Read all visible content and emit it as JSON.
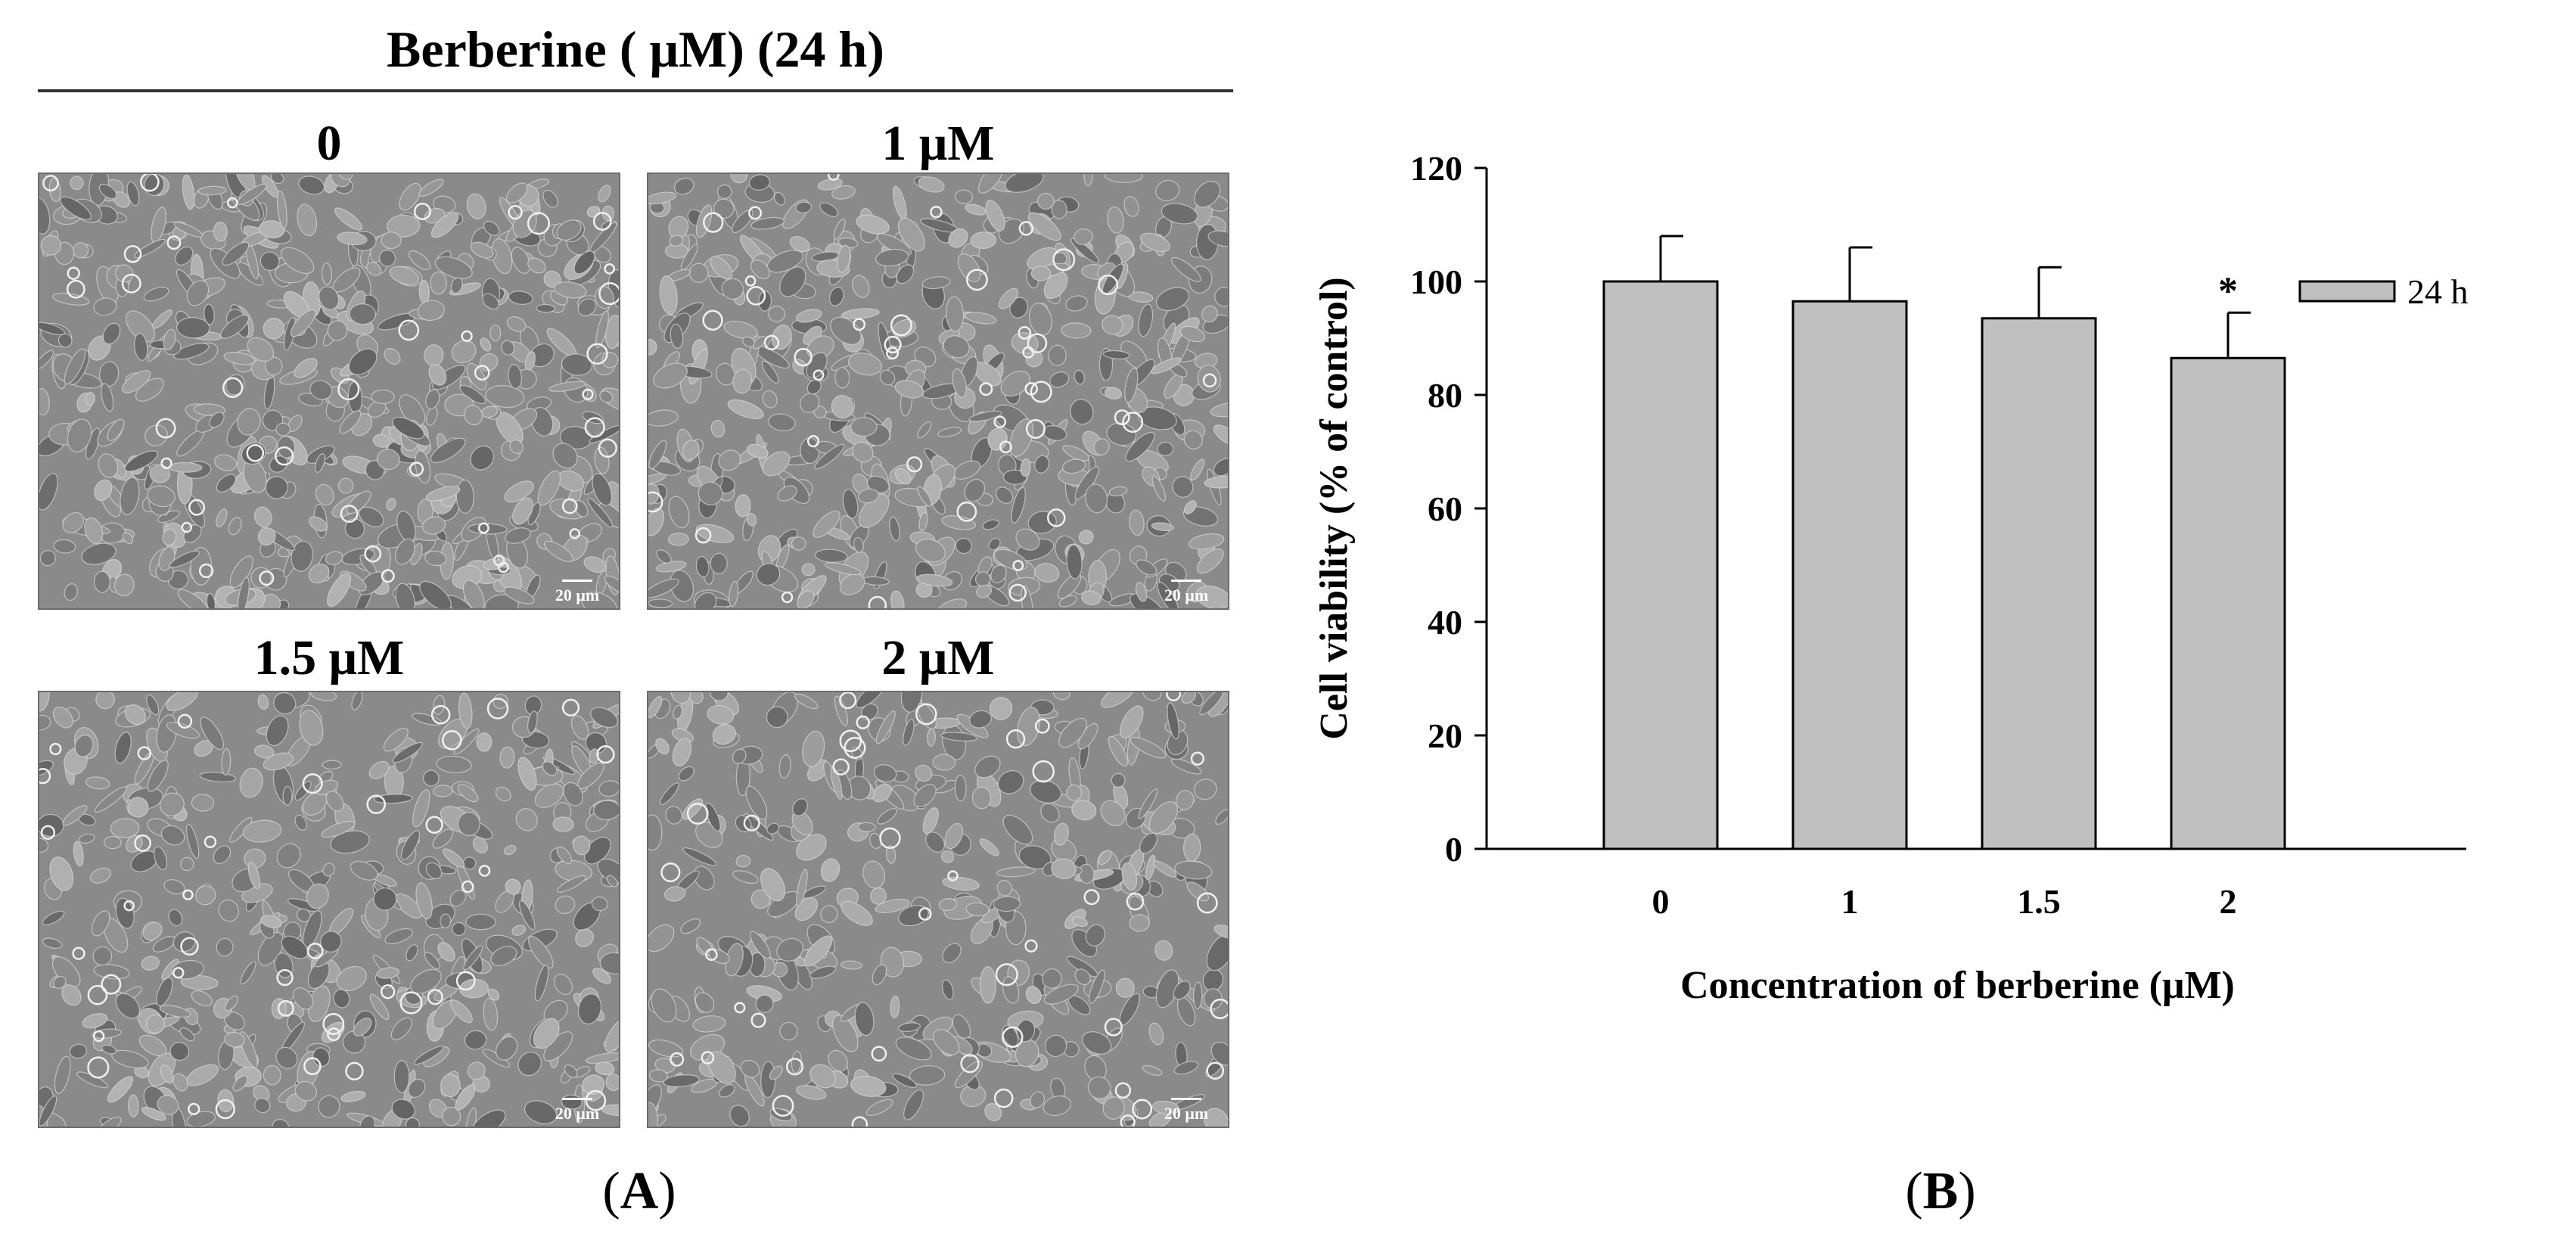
{
  "panel_a": {
    "title": "Berberine ( μM)   (24 h)",
    "images": [
      {
        "label": "0",
        "scalebar": "20 μm"
      },
      {
        "label": "1 μM",
        "scalebar": "20 μm"
      },
      {
        "label": "1.5 μM",
        "scalebar": "20 μm"
      },
      {
        "label": "2 μM",
        "scalebar": "20 μm"
      }
    ],
    "letter": "A"
  },
  "panel_b": {
    "letter": "B"
  },
  "colors": {
    "bar_fill": "#c0c0c0",
    "micro_bg": "#8a8a8a"
  },
  "chart_data": {
    "type": "bar",
    "categories": [
      "0",
      "1",
      "1.5",
      "2"
    ],
    "series": [
      {
        "name": "24 h",
        "values": [
          100,
          96.5,
          93.5,
          86.5
        ],
        "errors": [
          8,
          9.5,
          9,
          8
        ],
        "significance": [
          "",
          "",
          "",
          "*"
        ]
      }
    ],
    "xlabel": "Concentration of berberine (μM)",
    "ylabel": "Cell viability (% of control)",
    "ylim": [
      0,
      120
    ],
    "yticks": [
      0,
      20,
      40,
      60,
      80,
      100,
      120
    ],
    "grid": false,
    "legend_position": "top-right"
  }
}
